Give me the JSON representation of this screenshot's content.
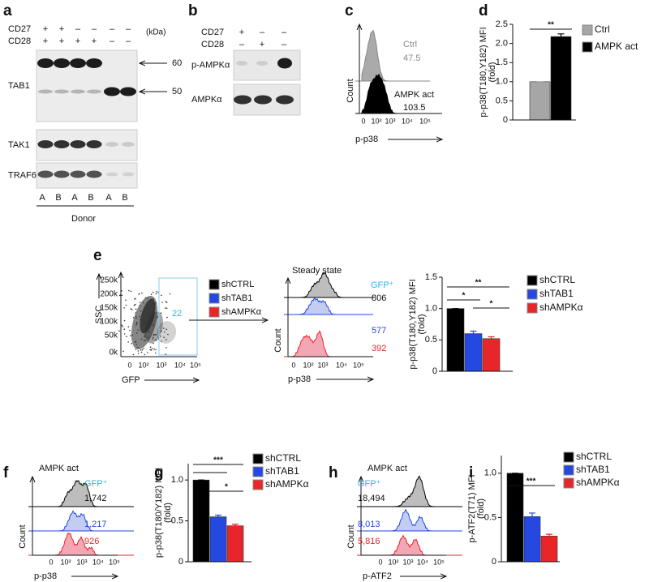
{
  "panels": {
    "a": {
      "letter": "a",
      "rows": [
        {
          "label": "CD27",
          "signs": [
            "+",
            "+",
            "–",
            "–",
            "–",
            "–"
          ]
        },
        {
          "label": "CD28",
          "signs": [
            "+",
            "+",
            "+",
            "+",
            "–",
            "–"
          ]
        }
      ],
      "unit": "(kDa)",
      "markers": [
        "60",
        "50"
      ],
      "blots": [
        "TAB1",
        "TAK1",
        "TRAF6"
      ],
      "lanes": [
        "A",
        "B",
        "A",
        "B",
        "A",
        "B"
      ],
      "xlabel": "Donor"
    },
    "b": {
      "letter": "b",
      "rows": [
        {
          "label": "CD27",
          "signs": [
            "+",
            "–",
            "–"
          ]
        },
        {
          "label": "CD28",
          "signs": [
            "–",
            "+",
            "–"
          ]
        }
      ],
      "blots": [
        "p-AMPKα",
        "AMPKα"
      ]
    },
    "c": {
      "letter": "c",
      "legend": [
        "Ctrl",
        "AMPK act"
      ],
      "labels": [
        "47.5",
        "103.5"
      ],
      "ylabel": "Count",
      "xticks": [
        "0",
        "10²",
        "10³",
        "10⁴",
        "10⁵"
      ],
      "xlabel": "p-p38"
    },
    "d": {
      "letter": "d"
    },
    "e": {
      "letter": "e",
      "scatter": {
        "yticks": [
          "250k",
          "200k",
          "150k",
          "100k",
          "50k",
          "0k"
        ],
        "xticks": [
          "0",
          "10²",
          "10³",
          "10⁴",
          "10⁵"
        ],
        "ylabel": "SSC",
        "xlabel": "GFP",
        "gate": "22"
      },
      "legend": [
        "shCTRL",
        "shTAB1",
        "shAMPKα"
      ],
      "histogram": {
        "title": "Steady state",
        "gate": "GFP⁺",
        "labels": [
          "806",
          "577",
          "392"
        ],
        "ylabel": "Count",
        "xticks": [
          "0",
          "10²",
          "10³",
          "10⁴",
          "10⁵"
        ],
        "xlabel": "p-p38"
      }
    },
    "f": {
      "letter": "f",
      "title": "AMPK act",
      "gate": "GFP⁺",
      "labels": [
        "1,742",
        "1,217",
        "926"
      ],
      "ylabel": "Count",
      "xticks": [
        "0",
        "10²",
        "10³",
        "10⁴",
        "10⁵"
      ],
      "xlabel": "p-p38"
    },
    "g": {
      "letter": "g"
    },
    "h": {
      "letter": "h",
      "title": "AMPK act",
      "gate": "GFP⁺",
      "labels": [
        "18,494",
        "8,013",
        "5,816"
      ],
      "ylabel": "Count",
      "xticks": [
        "0",
        "10²",
        "10³",
        "10⁴",
        "10⁵"
      ],
      "xlabel": "p-ATF2"
    },
    "i": {
      "letter": "i"
    }
  },
  "chart_data": [
    {
      "type": "bar",
      "y_label": [
        "p-p38(T180,Y182) MFI",
        "(fold)"
      ],
      "categories": [
        null
      ],
      "series": [
        {
          "name": "Ctrl",
          "color": "#a6a6a6",
          "values": [
            1.0
          ],
          "errors": [
            0
          ]
        },
        {
          "name": "AMPK act",
          "color": "#000000",
          "values": [
            2.18
          ],
          "errors": [
            0.07
          ]
        }
      ],
      "ylim": [
        0,
        2.5
      ],
      "yticks": [
        0,
        0.5,
        {
          "value": 1,
          "label": "1.0"
        },
        1.5,
        {
          "value": 2,
          "label": "2.0"
        },
        2.5
      ],
      "annotations": [
        "**"
      ]
    },
    {
      "type": "bar",
      "y_label": [
        "p-p38(T180,Y182) MFI",
        "(fold)"
      ],
      "categories": [
        null
      ],
      "series": [
        {
          "name": "shCTRL",
          "color": "#000000",
          "values": [
            1.0
          ],
          "errors": [
            0
          ]
        },
        {
          "name": "shTAB1",
          "color": "#2448e0",
          "values": [
            0.6
          ],
          "errors": [
            0.04
          ]
        },
        {
          "name": "shAMPKα",
          "color": "#e8262a",
          "values": [
            0.52
          ],
          "errors": [
            0.03
          ]
        }
      ],
      "ylim": [
        0,
        1.5
      ],
      "yticks": [
        0,
        0.5,
        {
          "value": 1,
          "label": "1.0"
        },
        1.5
      ],
      "annotations": [
        "**",
        "*",
        "*"
      ]
    },
    {
      "type": "bar",
      "y_label": [
        "p-p38(T180/Y182) MFI",
        "(fold)"
      ],
      "categories": [
        null
      ],
      "series": [
        {
          "name": "shCTRL",
          "color": "#000000",
          "values": [
            1.0
          ],
          "errors": [
            0
          ]
        },
        {
          "name": "shTAB1",
          "color": "#2448e0",
          "values": [
            0.55
          ],
          "errors": [
            0.02
          ]
        },
        {
          "name": "shAMPKα",
          "color": "#e8262a",
          "values": [
            0.44
          ],
          "errors": [
            0.02
          ]
        }
      ],
      "ylim": [
        0,
        1.2
      ],
      "yticks": [
        0,
        0.5,
        {
          "value": 1,
          "label": "1.0"
        }
      ],
      "annotations": [
        "***",
        "*"
      ]
    },
    {
      "type": "bar",
      "y_label": [
        "p-ATF2(T71) MFI",
        "(fold)"
      ],
      "categories": [
        null
      ],
      "series": [
        {
          "name": "shCTRL",
          "color": "#000000",
          "values": [
            1.0
          ],
          "errors": [
            0
          ]
        },
        {
          "name": "shTAB1",
          "color": "#2448e0",
          "values": [
            0.51
          ],
          "errors": [
            0.04
          ]
        },
        {
          "name": "shAMPKα",
          "color": "#e8262a",
          "values": [
            0.29
          ],
          "errors": [
            0.02
          ]
        }
      ],
      "ylim": [
        0,
        1.2
      ],
      "yticks": [
        0,
        0.5,
        {
          "value": 1,
          "label": "1.0"
        }
      ],
      "annotations": [
        "***"
      ]
    }
  ]
}
